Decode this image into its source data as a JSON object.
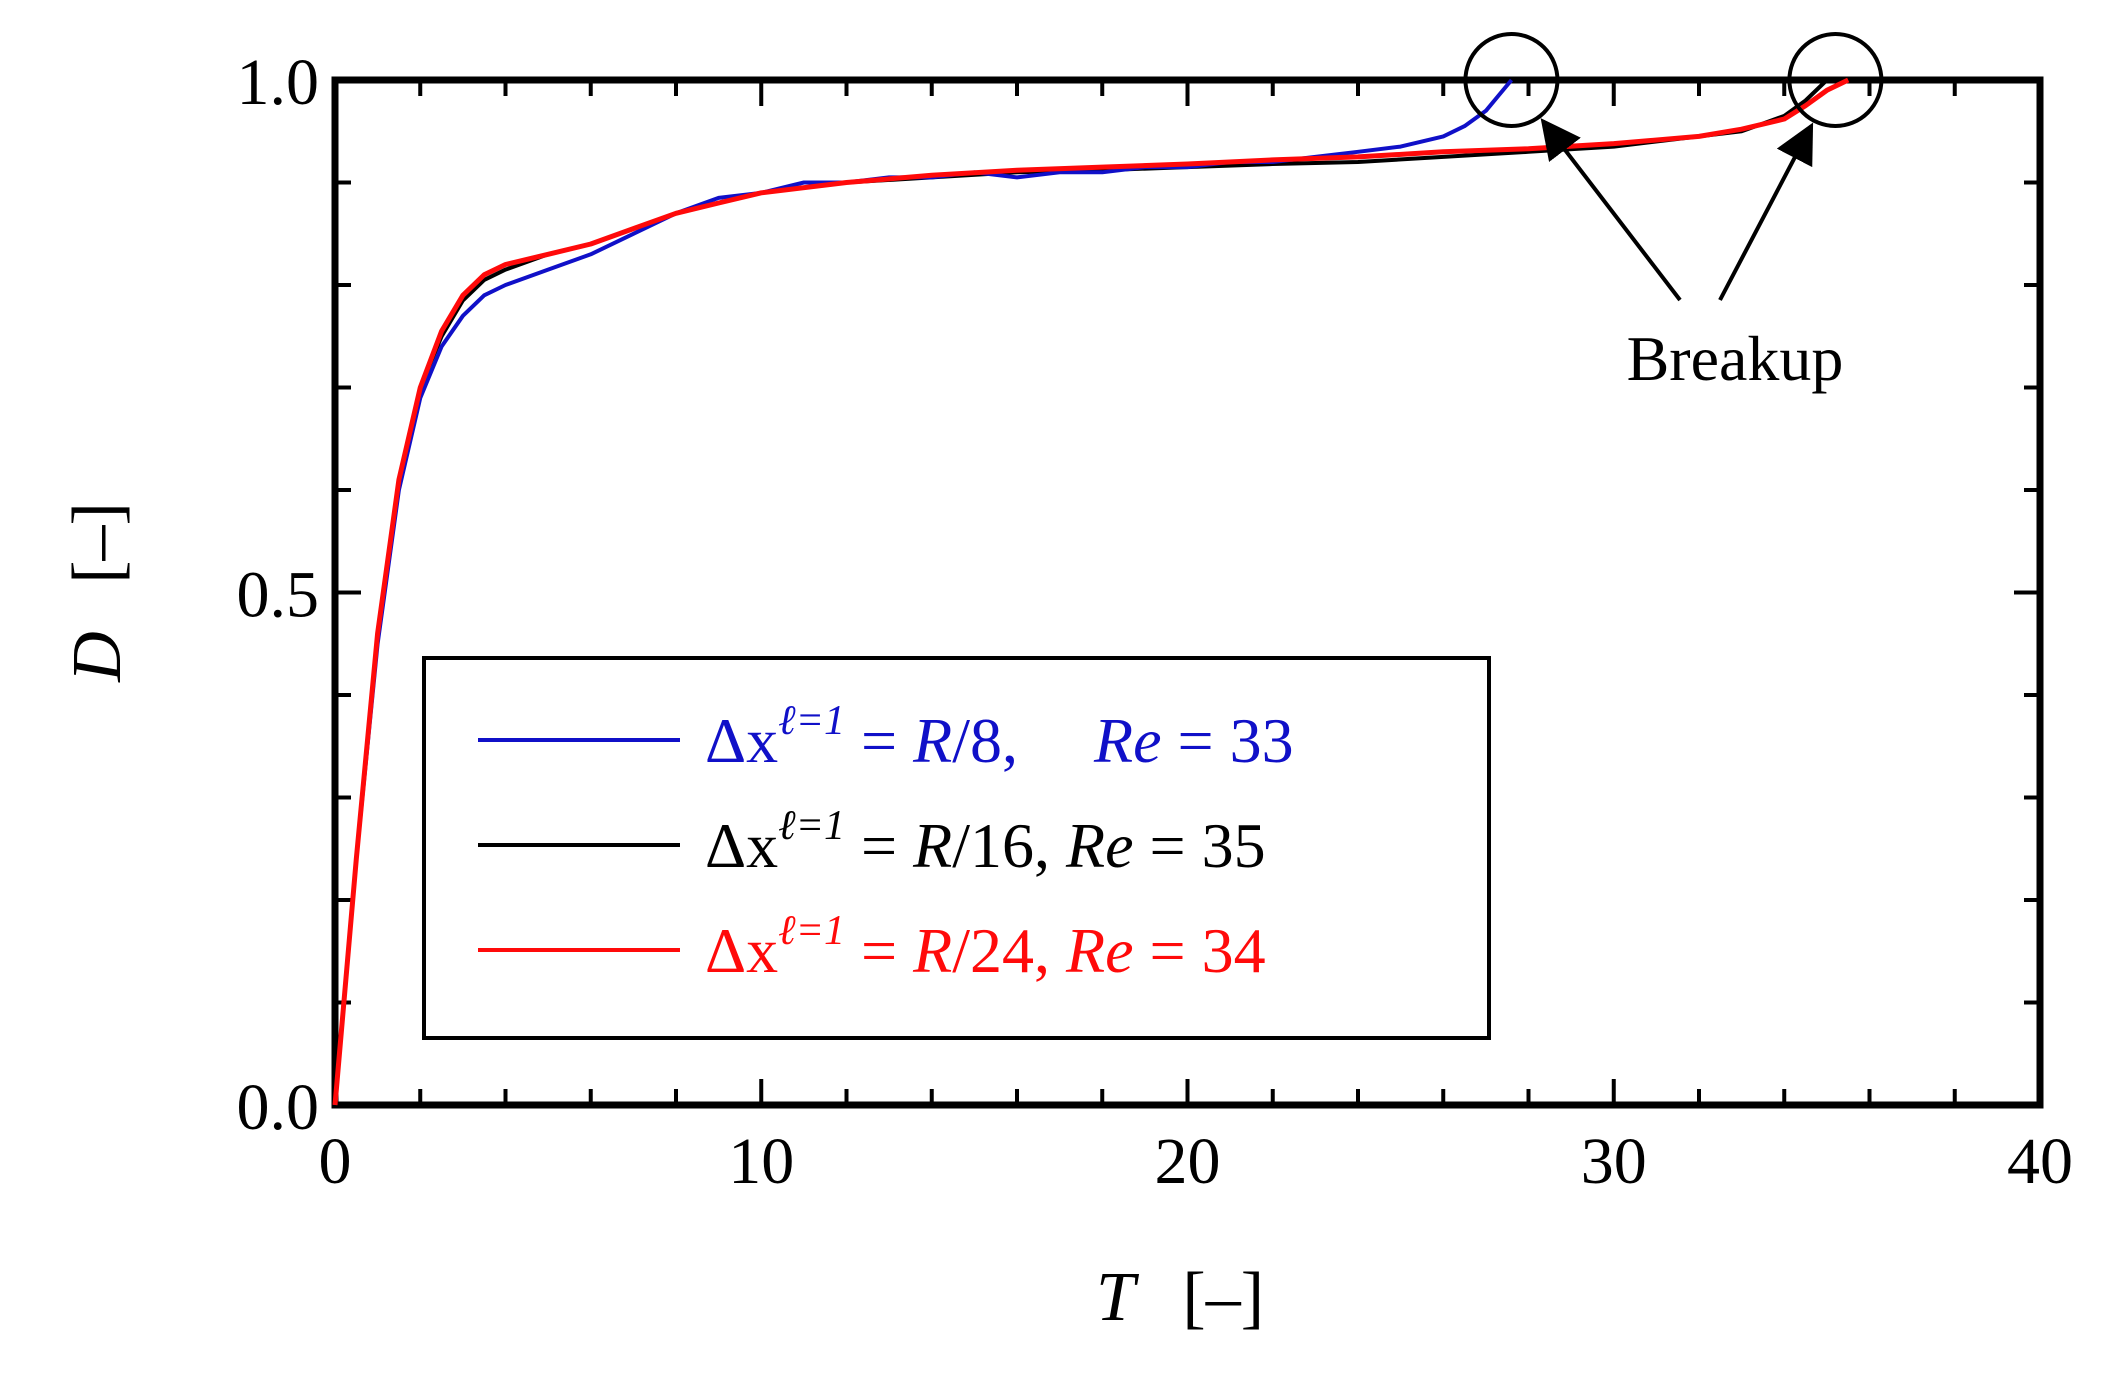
{
  "chart_data": {
    "type": "line",
    "xlabel": {
      "var": "T",
      "unit": "[–]"
    },
    "ylabel": {
      "var": "D",
      "unit": "[–]"
    },
    "xlim": [
      0,
      40
    ],
    "ylim": [
      0,
      1
    ],
    "xticks": [
      0,
      10,
      20,
      30,
      40
    ],
    "xtick_labels": [
      "0",
      "10",
      "20",
      "30",
      "40"
    ],
    "yticks": [
      0,
      0.5,
      1
    ],
    "ytick_labels": [
      "0.0",
      "0.5",
      "1.0"
    ],
    "x_minor_step": 2,
    "y_minor_step": 0.1,
    "grid": false,
    "legend_position": "lower-left",
    "series": [
      {
        "name": "Δx^{ℓ=1} = R/8,   Re = 33",
        "legend": {
          "dx": "Δx",
          "sup": "ℓ=1",
          "eq1": " = ",
          "frac": "R",
          "div": "/8, ",
          "re": "Re",
          "eq2": " = 33"
        },
        "color": "#1010c8",
        "x": [
          0,
          0.5,
          1,
          1.5,
          2,
          2.5,
          3,
          3.5,
          4,
          5,
          6,
          7,
          8,
          9,
          10,
          11,
          12,
          13,
          14,
          15,
          16,
          17,
          18,
          19,
          20,
          21,
          22,
          23,
          24,
          25,
          26,
          26.5,
          27,
          27.3,
          27.6
        ],
        "y": [
          0,
          0.24,
          0.45,
          0.6,
          0.69,
          0.74,
          0.77,
          0.79,
          0.8,
          0.815,
          0.83,
          0.85,
          0.87,
          0.885,
          0.89,
          0.9,
          0.9,
          0.905,
          0.905,
          0.91,
          0.905,
          0.91,
          0.91,
          0.915,
          0.915,
          0.92,
          0.92,
          0.925,
          0.93,
          0.935,
          0.945,
          0.955,
          0.97,
          0.985,
          1.0
        ]
      },
      {
        "name": "Δx^{ℓ=1} = R/16, Re = 35",
        "legend": {
          "dx": "Δx",
          "sup": "ℓ=1",
          "eq1": " = ",
          "frac": "R",
          "div": "/16, ",
          "re": "Re",
          "eq2": " = 35"
        },
        "color": "#000000",
        "x": [
          0,
          0.5,
          1,
          1.5,
          2,
          2.5,
          3,
          3.5,
          4,
          5,
          6,
          7,
          8,
          9,
          10,
          12,
          14,
          16,
          18,
          20,
          22,
          24,
          26,
          28,
          30,
          32,
          33,
          34,
          34.5,
          35
        ],
        "y": [
          0,
          0.24,
          0.46,
          0.61,
          0.7,
          0.75,
          0.785,
          0.805,
          0.815,
          0.83,
          0.84,
          0.855,
          0.87,
          0.88,
          0.89,
          0.9,
          0.905,
          0.91,
          0.912,
          0.915,
          0.918,
          0.92,
          0.925,
          0.93,
          0.935,
          0.945,
          0.95,
          0.965,
          0.98,
          1.0
        ]
      },
      {
        "name": "Δx^{ℓ=1} = R/24, Re = 34",
        "legend": {
          "dx": "Δx",
          "sup": "ℓ=1",
          "eq1": " = ",
          "frac": "R",
          "div": "/24, ",
          "re": "Re",
          "eq2": " = 34"
        },
        "color": "#ff0a0a",
        "x": [
          0,
          0.5,
          1,
          1.5,
          2,
          2.5,
          3,
          3.5,
          4,
          5,
          6,
          7,
          8,
          9,
          10,
          12,
          14,
          16,
          18,
          20,
          22,
          24,
          26,
          28,
          30,
          32,
          33,
          34,
          34.5,
          35,
          35.5
        ],
        "y": [
          0,
          0.24,
          0.46,
          0.61,
          0.7,
          0.755,
          0.79,
          0.81,
          0.82,
          0.83,
          0.84,
          0.855,
          0.87,
          0.88,
          0.89,
          0.9,
          0.907,
          0.912,
          0.915,
          0.918,
          0.922,
          0.925,
          0.93,
          0.933,
          0.938,
          0.945,
          0.952,
          0.962,
          0.975,
          0.99,
          1.0
        ]
      }
    ],
    "annotation": {
      "text": "Breakup",
      "circles": [
        {
          "x": 27.6,
          "y": 1.0
        },
        {
          "x": 35.2,
          "y": 1.0
        }
      ]
    }
  }
}
